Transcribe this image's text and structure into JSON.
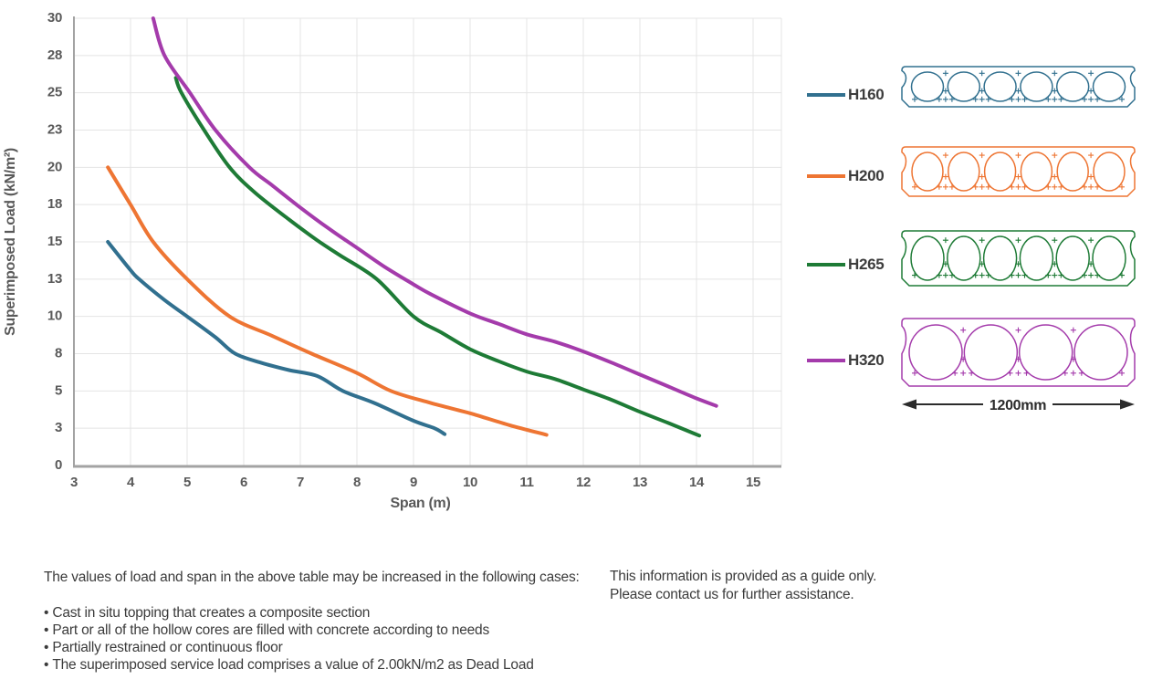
{
  "chart_data": {
    "type": "line",
    "title": "",
    "xlabel": "Span (m)",
    "ylabel": "Superimposed Load (kN/m²)",
    "xlim": [
      3,
      15.5
    ],
    "ylim": [
      0,
      30
    ],
    "x_ticks": [
      3,
      4,
      5,
      6,
      7,
      8,
      9,
      10,
      11,
      12,
      13,
      14,
      15
    ],
    "y_gridlines_every": 2.5,
    "y_tick_labels": [
      "0",
      "3",
      "5",
      "8",
      "10",
      "13",
      "15",
      "18",
      "20",
      "23",
      "25",
      "28",
      "30"
    ],
    "grid": true,
    "legend_position": "right",
    "series": [
      {
        "name": "H160",
        "color": "#31708f",
        "points": [
          [
            3.6,
            15
          ],
          [
            4,
            13.1
          ],
          [
            4.15,
            12.5
          ],
          [
            4.6,
            11.1
          ],
          [
            5,
            10
          ],
          [
            5.5,
            8.6
          ],
          [
            5.85,
            7.5
          ],
          [
            6.3,
            6.9
          ],
          [
            6.8,
            6.4
          ],
          [
            7.3,
            6.0
          ],
          [
            7.75,
            5.0
          ],
          [
            8.3,
            4.2
          ],
          [
            9,
            3.0
          ],
          [
            9.37,
            2.5
          ],
          [
            9.55,
            2.1
          ]
        ]
      },
      {
        "name": "H200",
        "color": "#ee7533",
        "points": [
          [
            3.6,
            20
          ],
          [
            4,
            17.5
          ],
          [
            4.4,
            15.0
          ],
          [
            5,
            12.5
          ],
          [
            5.75,
            10.0
          ],
          [
            6.5,
            8.7
          ],
          [
            7.2,
            7.5
          ],
          [
            8,
            6.2
          ],
          [
            8.6,
            5.0
          ],
          [
            9.3,
            4.2
          ],
          [
            10,
            3.5
          ],
          [
            10.7,
            2.7
          ],
          [
            11.35,
            2.05
          ]
        ]
      },
      {
        "name": "H265",
        "color": "#1e7b36",
        "points": [
          [
            4.8,
            26
          ],
          [
            4.9,
            25
          ],
          [
            5.3,
            22.5
          ],
          [
            5.75,
            20
          ],
          [
            6.2,
            18.3
          ],
          [
            6.8,
            16.5
          ],
          [
            7.3,
            15.1
          ],
          [
            7.7,
            14.1
          ],
          [
            8.35,
            12.5
          ],
          [
            9,
            10.0
          ],
          [
            9.5,
            8.9
          ],
          [
            10,
            7.8
          ],
          [
            10.5,
            7.0
          ],
          [
            11,
            6.3
          ],
          [
            11.5,
            5.8
          ],
          [
            12,
            5.1
          ],
          [
            12.5,
            4.4
          ],
          [
            13,
            3.6
          ],
          [
            13.5,
            2.85
          ],
          [
            14.05,
            2.0
          ]
        ]
      },
      {
        "name": "H320",
        "color": "#a43bab",
        "points": [
          [
            4.4,
            30
          ],
          [
            4.6,
            27.5
          ],
          [
            5.05,
            25
          ],
          [
            5.5,
            22.5
          ],
          [
            6.1,
            20
          ],
          [
            6.5,
            18.8
          ],
          [
            7,
            17.3
          ],
          [
            7.5,
            15.9
          ],
          [
            8,
            14.6
          ],
          [
            8.5,
            13.3
          ],
          [
            9,
            12.15
          ],
          [
            9.3,
            11.5
          ],
          [
            10,
            10.2
          ],
          [
            10.5,
            9.5
          ],
          [
            11,
            8.8
          ],
          [
            11.5,
            8.3
          ],
          [
            12,
            7.65
          ],
          [
            12.5,
            6.9
          ],
          [
            13,
            6.1
          ],
          [
            13.5,
            5.3
          ],
          [
            14,
            4.5
          ],
          [
            14.35,
            4.0
          ]
        ]
      }
    ]
  },
  "sections": {
    "dimension_label": "1200mm",
    "items": [
      {
        "label": "H160",
        "color": "#31708f",
        "cores": 6
      },
      {
        "label": "H200",
        "color": "#ee7533",
        "cores": 6
      },
      {
        "label": "H265",
        "color": "#1e7b36",
        "cores": 6
      },
      {
        "label": "H320",
        "color": "#a43bab",
        "cores": 4
      }
    ]
  },
  "notes": {
    "intro": "The values of load and span in the above table may be increased in the following cases:",
    "bullets": [
      "Cast in situ topping that creates a composite section",
      "Part or all of the hollow cores are filled with concrete according to needs",
      "Partially restrained or continuous floor",
      "The superimposed service load comprises a value of 2.00kN/m2 as Dead Load"
    ],
    "aside": [
      "This information is provided as a guide only.",
      "Please contact us for further assistance."
    ]
  }
}
